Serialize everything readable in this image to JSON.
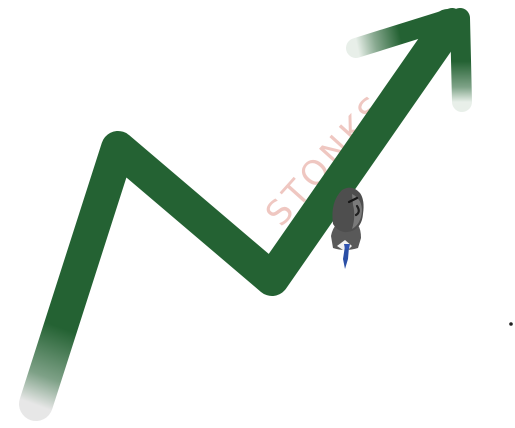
{
  "watermark": {
    "text": "STONKS"
  },
  "colors": {
    "background": "#ffffff",
    "arrow": "#246233",
    "arrow_fade": "#e6e6e6",
    "watermark": "#efc7c1",
    "figure_head": "#4e4e4e",
    "figure_body": "#595959",
    "figure_shirt": "#f2f2f2",
    "figure_tie": "#2b4fa6",
    "dot": "#222222"
  },
  "icons": {
    "trend_arrow": "rising-arrow-icon",
    "figure": "stonks-man-icon",
    "dot": "dot-icon"
  }
}
